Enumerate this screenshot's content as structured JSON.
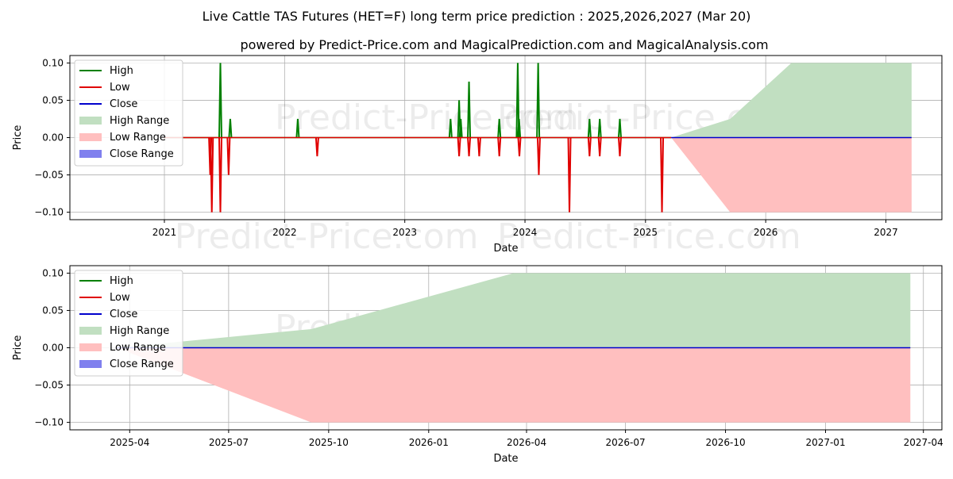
{
  "title": "Live Cattle TAS Futures (HET=F) long term price prediction : 2025,2026,2027 (Mar 20)",
  "subtitle": "powered by Predict-Price.com and MagicalPrediction.com and MagicalAnalysis.com",
  "watermark": "Predict-Price.com",
  "colors": {
    "high": "#008000",
    "low": "#e00000",
    "close": "#0000cc",
    "high_range": "#c1dfc1",
    "low_range": "#ffbfbf",
    "close_range": "#8080ee"
  },
  "chart_data": [
    {
      "type": "line",
      "xlabel": "Date",
      "ylabel": "Price",
      "xlim": [
        "2020-03-20",
        "2027-06-20"
      ],
      "ylim": [
        -0.11,
        0.11
      ],
      "xticks": [
        "2021-01-01",
        "2022-01-01",
        "2023-01-01",
        "2024-01-01",
        "2025-01-01",
        "2026-01-01",
        "2027-01-01"
      ],
      "xtick_labels": [
        "2021",
        "2022",
        "2023",
        "2024",
        "2025",
        "2026",
        "2027"
      ],
      "yticks": [
        -0.1,
        -0.05,
        0.0,
        0.05,
        0.1
      ],
      "ytick_labels": [
        "−0.10",
        "−0.05",
        "0.00",
        "0.05",
        "0.10"
      ],
      "grid": true,
      "legend": {
        "position": "top-left",
        "entries": [
          "High",
          "Low",
          "Close",
          "High Range",
          "Low Range",
          "Close Range"
        ]
      },
      "high_spikes": [
        {
          "date": "2021-06-20",
          "value": 0.1
        },
        {
          "date": "2021-07-20",
          "value": 0.025
        },
        {
          "date": "2022-02-10",
          "value": 0.025
        },
        {
          "date": "2023-05-20",
          "value": 0.025
        },
        {
          "date": "2023-06-15",
          "value": 0.05
        },
        {
          "date": "2023-06-20",
          "value": 0.025
        },
        {
          "date": "2023-07-15",
          "value": 0.075
        },
        {
          "date": "2023-10-15",
          "value": 0.025
        },
        {
          "date": "2023-12-10",
          "value": 0.1
        },
        {
          "date": "2023-12-14",
          "value": 0.025
        },
        {
          "date": "2024-02-10",
          "value": 0.1
        },
        {
          "date": "2024-07-15",
          "value": 0.025
        },
        {
          "date": "2024-08-15",
          "value": 0.025
        },
        {
          "date": "2024-10-15",
          "value": 0.025
        }
      ],
      "low_spikes": [
        {
          "date": "2021-05-20",
          "value": -0.05
        },
        {
          "date": "2021-05-25",
          "value": -0.1
        },
        {
          "date": "2021-06-20",
          "value": -0.1
        },
        {
          "date": "2021-07-15",
          "value": -0.05
        },
        {
          "date": "2022-04-10",
          "value": -0.025
        },
        {
          "date": "2023-06-15",
          "value": -0.025
        },
        {
          "date": "2023-07-15",
          "value": -0.025
        },
        {
          "date": "2023-08-15",
          "value": -0.025
        },
        {
          "date": "2023-10-15",
          "value": -0.025
        },
        {
          "date": "2023-12-15",
          "value": -0.025
        },
        {
          "date": "2024-02-12",
          "value": -0.05
        },
        {
          "date": "2024-05-15",
          "value": -0.1
        },
        {
          "date": "2024-07-15",
          "value": -0.025
        },
        {
          "date": "2024-08-15",
          "value": -0.025
        },
        {
          "date": "2024-10-15",
          "value": -0.025
        },
        {
          "date": "2025-02-20",
          "value": -0.1
        }
      ],
      "close_line": [
        {
          "date": "2020-03-20",
          "value": 0.0
        },
        {
          "date": "2027-03-20",
          "value": 0.0
        }
      ],
      "high_range": [
        {
          "date": "2025-03-20",
          "value": 0.0
        },
        {
          "date": "2025-09-15",
          "value": 0.025
        },
        {
          "date": "2026-03-20",
          "value": 0.1
        },
        {
          "date": "2027-03-20",
          "value": 0.1
        }
      ],
      "low_range": [
        {
          "date": "2025-03-20",
          "value": 0.0
        },
        {
          "date": "2025-09-15",
          "value": -0.1
        },
        {
          "date": "2027-03-20",
          "value": -0.1
        }
      ]
    },
    {
      "type": "area",
      "xlabel": "Date",
      "ylabel": "Price",
      "xlim": [
        "2025-02-05",
        "2027-04-18"
      ],
      "ylim": [
        -0.11,
        0.11
      ],
      "xticks": [
        "2025-04-01",
        "2025-07-01",
        "2025-10-01",
        "2026-01-01",
        "2026-04-01",
        "2026-07-01",
        "2026-10-01",
        "2027-01-01",
        "2027-04-01"
      ],
      "xtick_labels": [
        "2025-04",
        "2025-07",
        "2025-10",
        "2026-01",
        "2026-04",
        "2026-07",
        "2026-10",
        "2027-01",
        "2027-04"
      ],
      "yticks": [
        -0.1,
        -0.05,
        0.0,
        0.05,
        0.1
      ],
      "ytick_labels": [
        "−0.10",
        "−0.05",
        "0.00",
        "0.05",
        "0.10"
      ],
      "grid": true,
      "legend": {
        "position": "top-left",
        "entries": [
          "High",
          "Low",
          "Close",
          "High Range",
          "Low Range",
          "Close Range"
        ]
      },
      "close_line": [
        {
          "date": "2025-03-20",
          "value": 0.0
        },
        {
          "date": "2027-03-20",
          "value": 0.0
        }
      ],
      "high_range": [
        {
          "date": "2025-03-20",
          "value": 0.0
        },
        {
          "date": "2025-09-15",
          "value": 0.025
        },
        {
          "date": "2026-03-20",
          "value": 0.1
        },
        {
          "date": "2027-03-20",
          "value": 0.1
        }
      ],
      "low_range": [
        {
          "date": "2025-03-20",
          "value": 0.0
        },
        {
          "date": "2025-09-15",
          "value": -0.1
        },
        {
          "date": "2027-03-20",
          "value": -0.1
        }
      ]
    }
  ]
}
